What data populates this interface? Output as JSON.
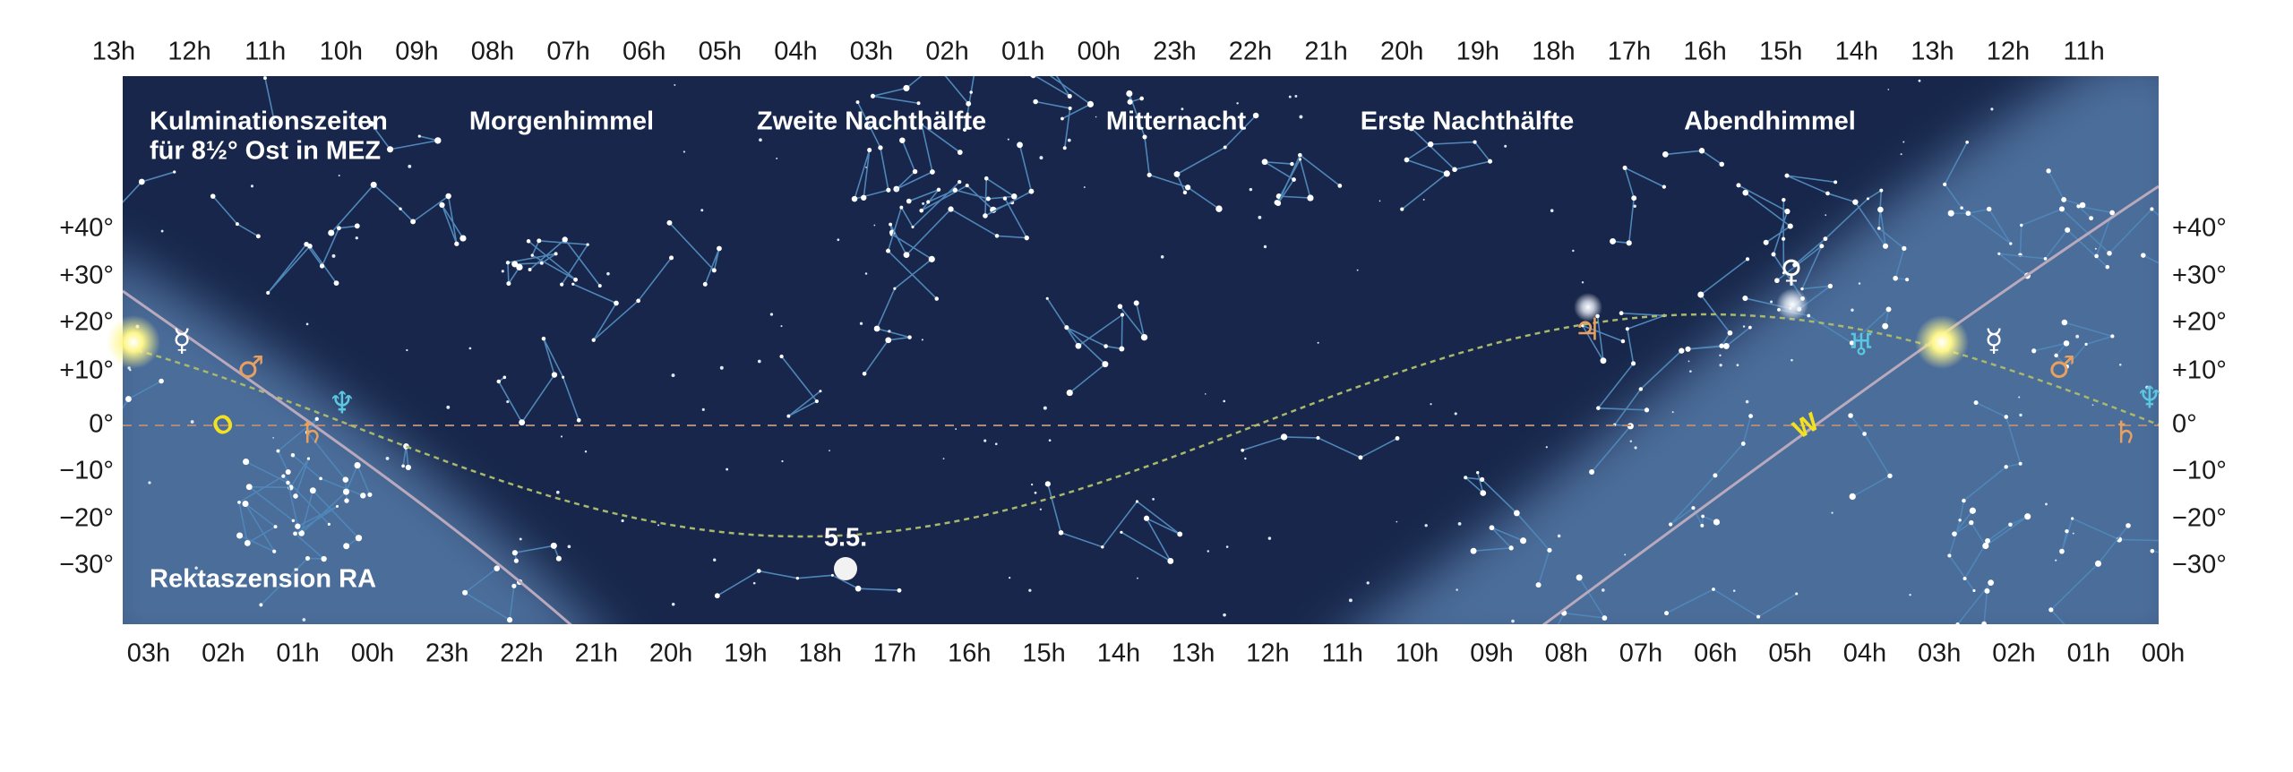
{
  "top_hours": [
    "13h",
    "12h",
    "11h",
    "10h",
    "09h",
    "08h",
    "07h",
    "06h",
    "05h",
    "04h",
    "03h",
    "02h",
    "01h",
    "00h",
    "23h",
    "22h",
    "21h",
    "20h",
    "19h",
    "18h",
    "17h",
    "16h",
    "15h",
    "14h",
    "13h",
    "12h",
    "11h"
  ],
  "bottom_hours": [
    "03h",
    "02h",
    "01h",
    "00h",
    "23h",
    "22h",
    "21h",
    "20h",
    "19h",
    "18h",
    "17h",
    "16h",
    "15h",
    "14h",
    "13h",
    "12h",
    "11h",
    "10h",
    "09h",
    "08h",
    "07h",
    "06h",
    "05h",
    "04h",
    "03h",
    "02h",
    "01h",
    "00h"
  ],
  "declination_left": [
    "+40°",
    "+30°",
    "+20°",
    "+10°",
    "0°",
    "−10°",
    "−20°",
    "−30°"
  ],
  "declination_right": [
    "+40°",
    "+30°",
    "+20°",
    "+10°",
    "0°",
    "−10°",
    "−20°",
    "−30°"
  ],
  "title_lines": [
    "Kulminationszeiten",
    "für 8½° Ost in MEZ"
  ],
  "sections": [
    "Morgenhimmel",
    "Zweite Nachthälfte",
    "Mitternacht",
    "Erste Nachthälfte",
    "Abendhimmel"
  ],
  "ra_label": "Rektaszension RA",
  "moon_date": "5.5.",
  "east": "O",
  "west": "W",
  "planet_symbols": [
    "☿",
    "♂",
    "♄",
    "♆",
    "♃",
    "♀",
    "♅",
    "☿",
    "♂",
    "♆",
    "♄"
  ]
}
